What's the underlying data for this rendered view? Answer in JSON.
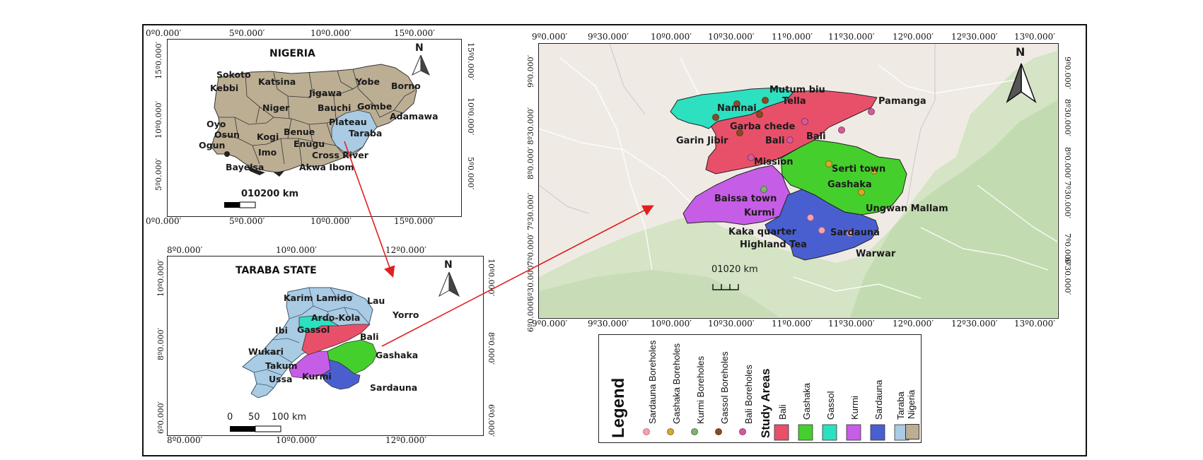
{
  "nigeria_map": {
    "title": "NIGERIA",
    "north": "N",
    "top_ticks": [
      "0º0.000′",
      "5º0.000′",
      "10º0.000′",
      "15º0.000′"
    ],
    "bottom_ticks": [
      "0º0.000′",
      "5º0.000′",
      "10º0.000′",
      "15º0.000′"
    ],
    "left_ticks": [
      "15º0.000′",
      "10º0.000′",
      "5º0.000′"
    ],
    "right_ticks": [
      "15º0.000′",
      "10º0.000′",
      "5º0.000′"
    ],
    "scale": "010200 km",
    "labels": [
      "Sokoto",
      "Katsina",
      "Kebbi",
      "Jigawa",
      "Yobe",
      "Borno",
      "Niger",
      "Bauchi",
      "Gombe",
      "Adamawa",
      "Oyo",
      "Plateau",
      "Osun",
      "Kogi",
      "Benue",
      "Taraba",
      "Ogun",
      "Enugu",
      "Cross River",
      "Imo",
      "Bayelsa",
      "Akwa Ibom"
    ]
  },
  "taraba_map": {
    "title": "TARABA STATE",
    "north": "N",
    "top_ticks": [
      "8º0.000′",
      "10º0.000′",
      "12º0.000′"
    ],
    "bottom_ticks": [
      "8º0.000′",
      "10º0.000′",
      "12º0.000′"
    ],
    "right_ticks": [
      "10º0.000′",
      "8º0.000′",
      "6º0.000′"
    ],
    "left_ticks": [
      "10º0.000′",
      "8º0.000′",
      "6º0.000′"
    ],
    "scale_labels": [
      "0",
      "50",
      "100 km"
    ],
    "labels": [
      "Karim Lamido",
      "Lau",
      "Ardo-Kola",
      "Yorro",
      "Ibi",
      "Gassol",
      "Bali",
      "Wukari",
      "Gashaka",
      "Takum",
      "Ussa",
      "Kurmi",
      "Sardauna"
    ]
  },
  "study_map": {
    "north": "N",
    "top_ticks": [
      "9º0.000′",
      "9º30.000′",
      "10º0.000′",
      "10º30.000′",
      "11º0.000′",
      "11º30.000′",
      "12º0.000′",
      "12º30.000′",
      "13º0.000′"
    ],
    "bottom_ticks": [
      "9º0.000′",
      "9º30.000′",
      "10º0.000′",
      "10º30.000′",
      "11º0.000′",
      "11º30.000′",
      "12º0.000′",
      "12º30.000′",
      "13º0.000′"
    ],
    "left_ticks": [
      "9º0.000′",
      "8º30.000′",
      "8º0.000′",
      "7º30.000′",
      "7º0.000′",
      "6º30.000′",
      "6º0.000′"
    ],
    "right_ticks": [
      "9º0.000′",
      "8º30.000′",
      "8º0.000′",
      "7º30.000′",
      "7º0.000′",
      "6º30.000′"
    ],
    "scale": "01020 km",
    "labels": [
      "Mutum biu",
      "Tella",
      "Namnai",
      "Pamanga",
      "Garba chede",
      "Bali",
      "Garin Jibir",
      "Bali",
      "Mission",
      "Serti town",
      "Gashaka",
      "Baissa town",
      "Ungwan Mallam",
      "Kurmi",
      "Kaka quarter",
      "Sardauna",
      "Highland Tea",
      "Warwar"
    ]
  },
  "legend": {
    "title": "Legend",
    "boreholes": [
      "Sardauna Boreholes",
      "Gashaka Boreholes",
      "Kurmi Boreholes",
      "Gassol Boreholes",
      "Bali Boreholes"
    ],
    "study_areas_title": "Study Areas",
    "areas": [
      "Bali",
      "Gashaka",
      "Gassol",
      "Kurmi",
      "Sardauna",
      "Taraba",
      "Nigeria"
    ]
  },
  "colors": {
    "bali": "#e8506a",
    "gashaka": "#45cf2d",
    "gassol": "#2de0c0",
    "kurmi": "#c65de6",
    "sardauna": "#4a5fcf",
    "taraba": "#a9cbe3",
    "nigeria": "#bcae93",
    "sardauna_borehole": "#f4a3ad",
    "gashaka_borehole": "#d6a82a",
    "kurmi_borehole": "#7bb56a",
    "gassol_borehole": "#8a4a22",
    "bali_borehole": "#d65a9a",
    "arrow": "#e02020"
  }
}
